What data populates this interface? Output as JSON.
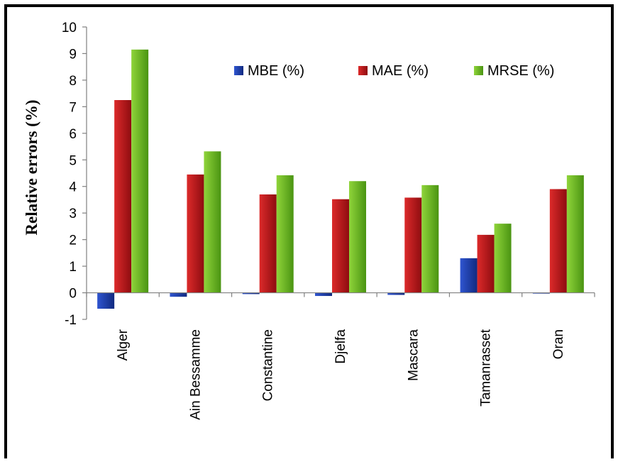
{
  "chart_data": {
    "type": "bar",
    "categories": [
      "Alger",
      "Ain Bessamme",
      "Constantine",
      "Djelfa",
      "Mascara",
      "Tamanrasset",
      "Oran"
    ],
    "series": [
      {
        "name": "MBE (%)",
        "color": "#1f3fa8",
        "values": [
          -0.6,
          -0.15,
          -0.05,
          -0.12,
          -0.08,
          1.3,
          -0.03
        ]
      },
      {
        "name": "MAE (%)",
        "color": "#c0141a",
        "values": [
          7.25,
          4.45,
          3.7,
          3.52,
          3.58,
          2.18,
          3.9
        ]
      },
      {
        "name": "MRSE (%)",
        "color": "#6ab820",
        "values": [
          9.15,
          5.32,
          4.42,
          4.2,
          4.05,
          2.6,
          4.42
        ]
      }
    ],
    "ylabel": "Relative errors (%)",
    "xlabel": "",
    "ylim": [
      -1,
      10
    ],
    "yticks": [
      -1,
      0,
      1,
      2,
      3,
      4,
      5,
      6,
      7,
      8,
      9,
      10
    ],
    "grid": false,
    "legend_position": "top-right"
  }
}
